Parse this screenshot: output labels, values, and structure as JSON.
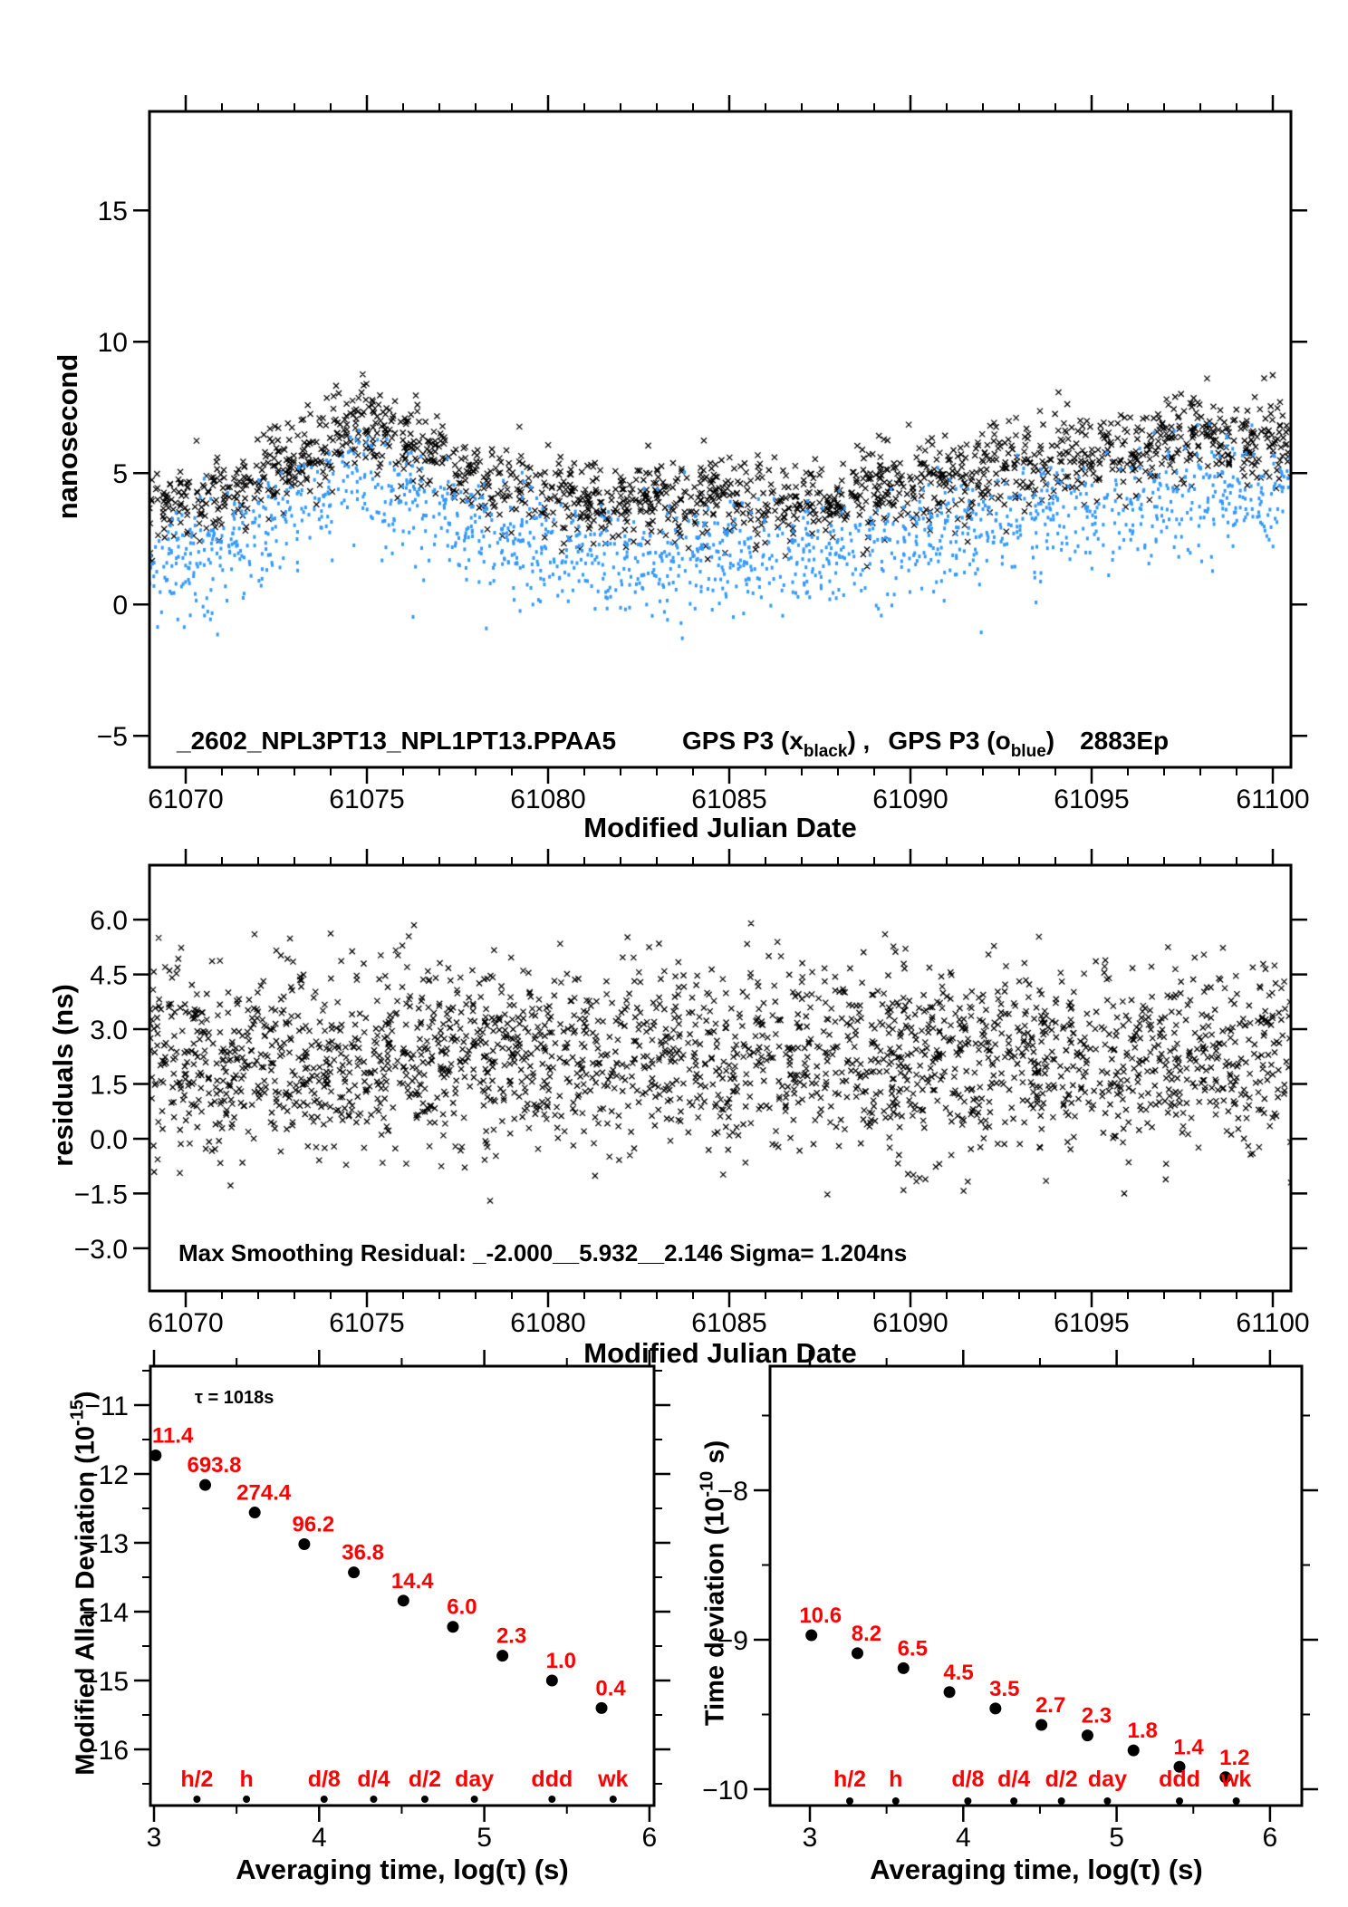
{
  "colors": {
    "foreground": "#000000",
    "series_blue": "#3399FF",
    "label_red": "#FF0000",
    "background": "#FFFFFF"
  },
  "chart_data": [
    {
      "type": "scatter",
      "id": "gps-p3-phase-comparison",
      "title": "_2602_NPL3PT13_NPL1PT13.PPAA5  GPS P3 (x black), GPS P3 (o blue)  2883Ep",
      "xlabel": "Modified Julian Date",
      "ylabel": "nanosecond",
      "xlim": [
        61069,
        61100.5
      ],
      "ylim": [
        -6.2,
        18.8
      ],
      "x_ticks": [
        61070,
        61075,
        61080,
        61085,
        61090,
        61095,
        61100
      ],
      "x_minor_step": 1,
      "y_ticks": [
        -5,
        0,
        5,
        10,
        15
      ],
      "grid": false,
      "annotation": {
        "dataset": "_2602_NPL3PT13_NPL1PT13.PPAA5",
        "series1_prefix": "GPS P3 (x",
        "series1_sub": "black",
        "series1_suffix": ") ,",
        "series2_prefix": "GPS P3 (o",
        "series2_sub": "blue",
        "series2_suffix": ")",
        "trailer": "2883Ep"
      },
      "series": [
        {
          "name": "GPS P3 x (black)",
          "marker": "x",
          "color": "#000000",
          "n_points": 1700,
          "seed": 11,
          "noise_sigma_ns": 0.82,
          "value_range_ns": [
            1.3,
            9.3
          ],
          "trend_days_from_61069_vs_ns": [
            [
              0,
              3.55
            ],
            [
              1,
              3.8
            ],
            [
              2,
              4.25
            ],
            [
              3,
              4.75
            ],
            [
              4,
              5.5
            ],
            [
              5,
              6.45
            ],
            [
              5.7,
              6.95
            ],
            [
              6.3,
              6.6
            ],
            [
              7,
              6.15
            ],
            [
              8,
              5.45
            ],
            [
              9,
              4.75
            ],
            [
              10,
              4.35
            ],
            [
              11,
              4.2
            ],
            [
              12,
              4.0
            ],
            [
              13,
              3.85
            ],
            [
              14,
              3.9
            ],
            [
              15,
              3.95
            ],
            [
              16,
              3.9
            ],
            [
              17,
              3.8
            ],
            [
              18,
              3.9
            ],
            [
              19,
              4.1
            ],
            [
              20,
              4.3
            ],
            [
              21,
              4.55
            ],
            [
              22,
              4.8
            ],
            [
              23,
              5.05
            ],
            [
              24,
              5.3
            ],
            [
              25,
              5.5
            ],
            [
              26,
              5.65
            ],
            [
              27,
              5.8
            ],
            [
              28,
              6.0
            ],
            [
              28.7,
              6.3
            ],
            [
              29.0,
              6.9
            ],
            [
              29.4,
              6.3
            ],
            [
              30,
              6.1
            ],
            [
              30.8,
              6.3
            ],
            [
              31.45,
              6.2
            ]
          ]
        },
        {
          "name": "GPS P3 o (blue)",
          "marker": "dot",
          "color": "#3399FF",
          "n_points": 1550,
          "seed": 77,
          "trend_offset_ns": -1.8,
          "noise_sigma_ns": 0.95,
          "low_tail_sigma_ns": 0.9,
          "value_range_ns": [
            -1.3,
            7.2
          ]
        }
      ]
    },
    {
      "type": "scatter",
      "id": "smoothing-residuals",
      "xlabel": "Modified Julian Date",
      "ylabel": "residuals (ns)",
      "xlim": [
        61069,
        61100.5
      ],
      "ylim": [
        -4.17,
        7.5
      ],
      "x_ticks": [
        61070,
        61075,
        61080,
        61085,
        61090,
        61095,
        61100
      ],
      "x_minor_step": 1,
      "y_ticks": [
        -3.0,
        -1.5,
        0.0,
        1.5,
        3.0,
        4.5,
        6.0
      ],
      "grid": false,
      "annotation": "Max Smoothing Residual: _-2.000__5.932__2.146  Sigma= 1.204ns",
      "series": [
        {
          "name": "residuals",
          "marker": "x",
          "color": "#000000",
          "n_points": 2300,
          "seed": 5,
          "mean_ns": 2.25,
          "noise_sigma_ns": 1.28,
          "value_range_ns": [
            -1.55,
            5.55
          ],
          "outliers": [
            [
              61071.9,
              5.6
            ],
            [
              61074.0,
              5.62
            ],
            [
              61076.3,
              5.85
            ],
            [
              61085.6,
              5.9
            ],
            [
              61089.3,
              5.6
            ],
            [
              61078.4,
              -1.7
            ],
            [
              61095.9,
              -1.5
            ],
            [
              61100.5,
              -1.2
            ]
          ]
        }
      ]
    },
    {
      "type": "scatter",
      "id": "modified-allan-deviation",
      "xlabel": "Averaging time, log(τ) (s)",
      "ylabel_parts": {
        "main": "Modified Allan Deviation (10",
        "sup": "-15",
        "close": ")"
      },
      "tau_annotation": "τ = 1018s",
      "xlim": [
        2.98,
        6.03
      ],
      "ylim": [
        -16.8,
        -10.45
      ],
      "x_ticks": [
        3,
        4,
        5,
        6
      ],
      "x_minor_step": 0.5,
      "y_ticks": [
        -11,
        -12,
        -13,
        -14,
        -15,
        -16
      ],
      "y_minor_step": 0.5,
      "points": [
        {
          "log_tau": 3.01,
          "label": "11.4",
          "y": -11.73,
          "label_clipped_at_axis": true
        },
        {
          "log_tau": 3.31,
          "label": "693.8",
          "y": -12.16
        },
        {
          "log_tau": 3.61,
          "label": "274.4",
          "y": -12.56
        },
        {
          "log_tau": 3.91,
          "label": "96.2",
          "y": -13.02
        },
        {
          "log_tau": 4.21,
          "label": "36.8",
          "y": -13.43
        },
        {
          "log_tau": 4.51,
          "label": "14.4",
          "y": -13.84
        },
        {
          "log_tau": 4.81,
          "label": "6.0",
          "y": -14.22
        },
        {
          "log_tau": 5.11,
          "label": "2.3",
          "y": -14.64
        },
        {
          "log_tau": 5.41,
          "label": "1.0",
          "y": -15.0
        },
        {
          "log_tau": 5.71,
          "label": "0.4",
          "y": -15.4
        }
      ],
      "categories": [
        {
          "label": "h/2",
          "log_tau": 3.26
        },
        {
          "label": "h",
          "log_tau": 3.56
        },
        {
          "label": "d/8",
          "log_tau": 4.03
        },
        {
          "label": "d/4",
          "log_tau": 4.33
        },
        {
          "label": "d/2",
          "log_tau": 4.64
        },
        {
          "label": "day",
          "log_tau": 4.94
        },
        {
          "label": "ddd",
          "log_tau": 5.41
        },
        {
          "label": "wk",
          "log_tau": 5.78
        }
      ]
    },
    {
      "type": "scatter",
      "id": "time-deviation",
      "xlabel": "Averaging time, log(τ) (s)",
      "ylabel_parts": {
        "main": "Time deviation (10",
        "sup": "-10",
        "close": " s)"
      },
      "xlim": [
        2.74,
        6.21
      ],
      "ylim": [
        -10.11,
        -7.17
      ],
      "x_ticks": [
        3,
        4,
        5,
        6
      ],
      "x_minor_step": 0.5,
      "y_ticks": [
        -8,
        -9,
        -10
      ],
      "y_minor_step": 0.5,
      "points": [
        {
          "log_tau": 3.01,
          "label": "10.6",
          "y": -8.97
        },
        {
          "log_tau": 3.31,
          "label": "8.2",
          "y": -9.09
        },
        {
          "log_tau": 3.61,
          "label": "6.5",
          "y": -9.19
        },
        {
          "log_tau": 3.91,
          "label": "4.5",
          "y": -9.35
        },
        {
          "log_tau": 4.21,
          "label": "3.5",
          "y": -9.46
        },
        {
          "log_tau": 4.51,
          "label": "2.7",
          "y": -9.57
        },
        {
          "log_tau": 4.81,
          "label": "2.3",
          "y": -9.64
        },
        {
          "log_tau": 5.11,
          "label": "1.8",
          "y": -9.74
        },
        {
          "log_tau": 5.41,
          "label": "1.4",
          "y": -9.85
        },
        {
          "log_tau": 5.71,
          "label": "1.2",
          "y": -9.92
        }
      ],
      "categories": [
        {
          "label": "h/2",
          "log_tau": 3.26
        },
        {
          "label": "h",
          "log_tau": 3.56
        },
        {
          "label": "d/8",
          "log_tau": 4.03
        },
        {
          "label": "d/4",
          "log_tau": 4.33
        },
        {
          "label": "d/2",
          "log_tau": 4.64
        },
        {
          "label": "day",
          "log_tau": 4.94
        },
        {
          "label": "ddd",
          "log_tau": 5.41
        },
        {
          "label": "wk",
          "log_tau": 5.78
        }
      ]
    }
  ]
}
